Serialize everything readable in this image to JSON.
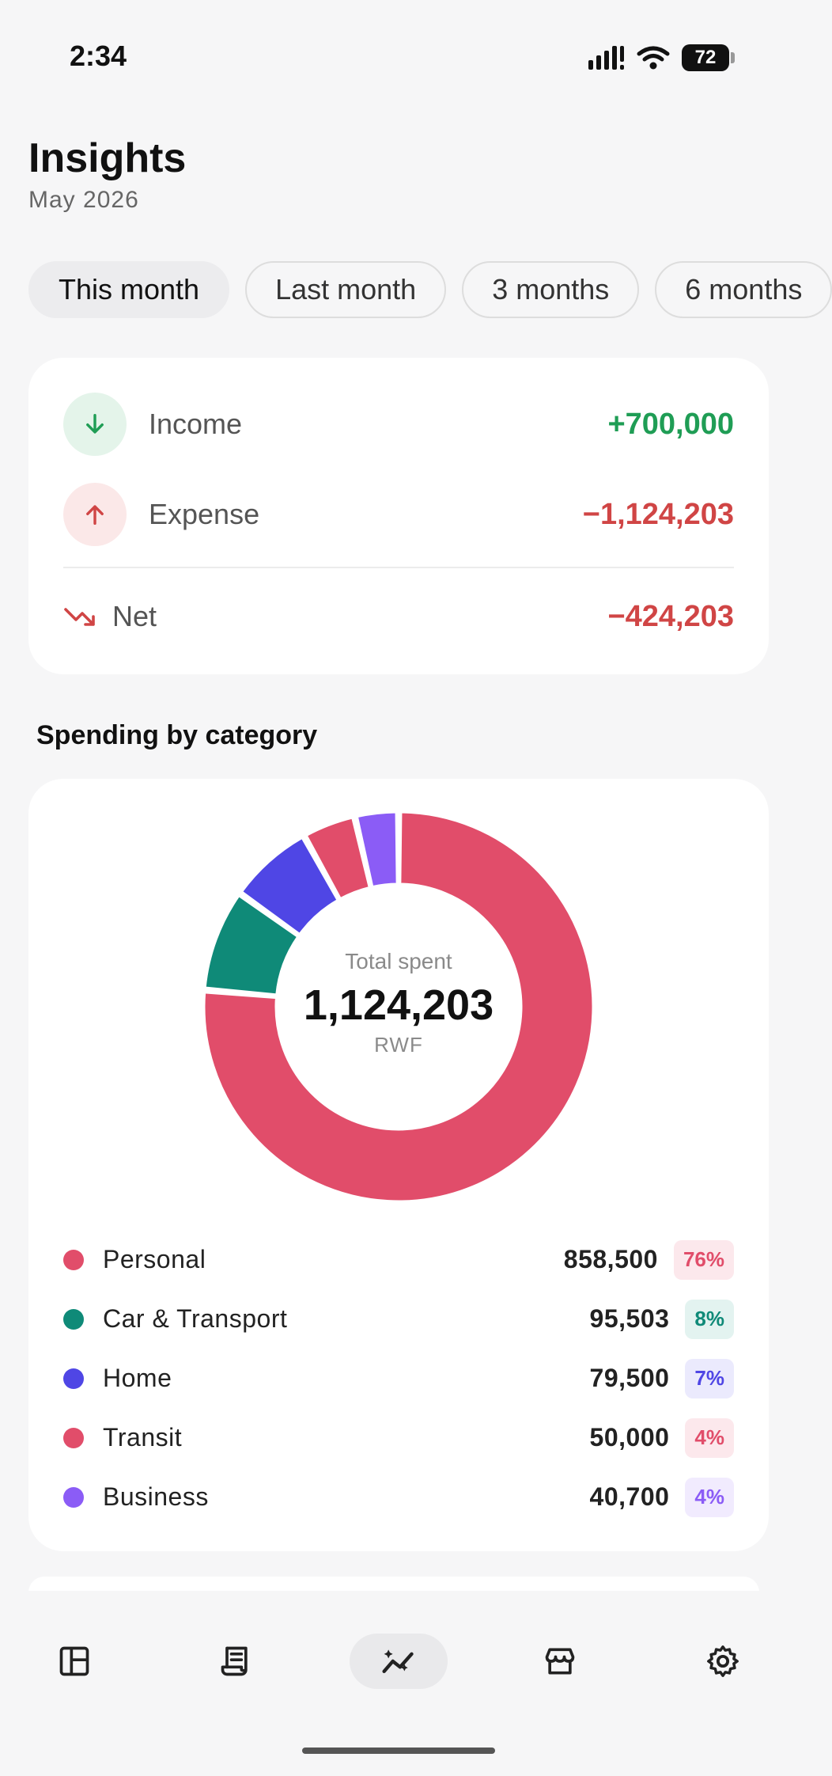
{
  "status": {
    "time": "2:34",
    "battery": "72"
  },
  "header": {
    "title": "Insights",
    "subtitle": "May 2026"
  },
  "filters": [
    {
      "label": "This month",
      "active": true
    },
    {
      "label": "Last month",
      "active": false
    },
    {
      "label": "3 months",
      "active": false
    },
    {
      "label": "6 months",
      "active": false
    }
  ],
  "summary": {
    "income": {
      "label": "Income",
      "value": "+700,000",
      "color": "#1f9d55"
    },
    "expense": {
      "label": "Expense",
      "value": "−1,124,203",
      "color": "#d04545"
    },
    "net": {
      "label": "Net",
      "value": "−424,203",
      "color": "#d04545"
    }
  },
  "spending": {
    "section_title": "Spending by category",
    "total_label": "Total spent",
    "total_value": "1,124,203",
    "currency": "RWF",
    "categories": [
      {
        "name": "Personal",
        "amount": "858,500",
        "value": 858500,
        "percent": "76%",
        "color": "#e14d6a",
        "bg": "#fce8ec"
      },
      {
        "name": "Car & Transport",
        "amount": "95,503",
        "value": 95503,
        "percent": "8%",
        "color": "#0f8a78",
        "bg": "#e3f3f0"
      },
      {
        "name": "Home",
        "amount": "79,500",
        "value": 79500,
        "percent": "7%",
        "color": "#4f46e5",
        "bg": "#ebeafd"
      },
      {
        "name": "Transit",
        "amount": "50,000",
        "value": 50000,
        "percent": "4%",
        "color": "#e14d6a",
        "bg": "#fce8ec"
      },
      {
        "name": "Business",
        "amount": "40,700",
        "value": 40700,
        "percent": "4%",
        "color": "#8b5cf6",
        "bg": "#f1ebfe"
      }
    ]
  },
  "nav": {
    "items": [
      {
        "icon": "dashboard-icon",
        "active": false
      },
      {
        "icon": "receipt-icon",
        "active": false
      },
      {
        "icon": "insights-icon",
        "active": true
      },
      {
        "icon": "store-icon",
        "active": false
      },
      {
        "icon": "gear-icon",
        "active": false
      }
    ]
  }
}
